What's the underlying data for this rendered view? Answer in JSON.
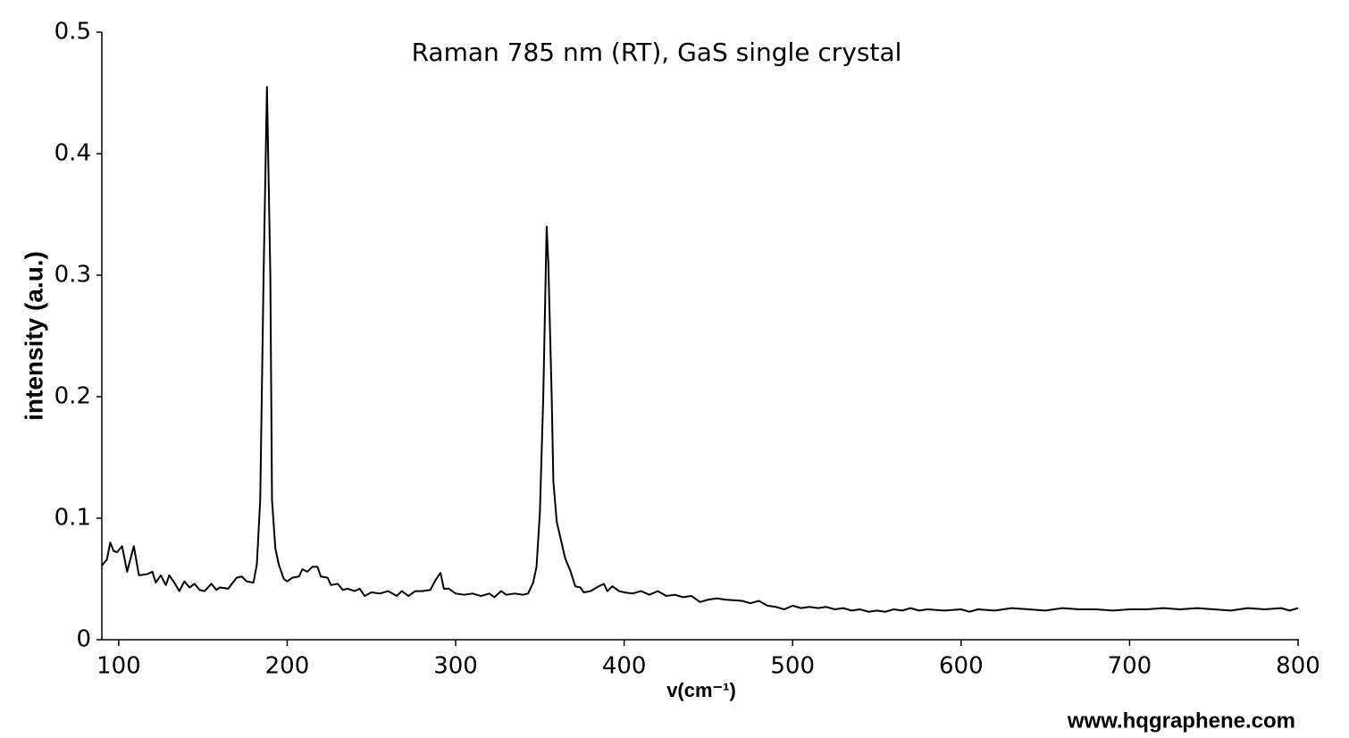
{
  "chart_data": {
    "type": "line",
    "title": "Raman 785 nm (RT), GaS single crystal",
    "x_label": "v(cm⁻¹)",
    "y_label": "intensity (a.u.)",
    "watermark": "www.hqgraphene.com",
    "xlim": [
      90,
      800
    ],
    "ylim": [
      0,
      0.5
    ],
    "xticks": [
      100,
      200,
      300,
      400,
      500,
      600,
      700,
      800
    ],
    "yticks": [
      0,
      0.1,
      0.2,
      0.3,
      0.4,
      0.5
    ],
    "series": [
      {
        "color": "#000000",
        "x": [
          90,
          93,
          95,
          97,
          99,
          102,
          105,
          109,
          112,
          117,
          120,
          122,
          125,
          128,
          130,
          133,
          136,
          139,
          142,
          145,
          148,
          151,
          155,
          158,
          160,
          165,
          170,
          173,
          176,
          180,
          182,
          184,
          186,
          188,
          190,
          191,
          193,
          195,
          198,
          200,
          203,
          207,
          209,
          212,
          215,
          218,
          220,
          224,
          226,
          230,
          233,
          236,
          240,
          243,
          246,
          250,
          255,
          260,
          265,
          268,
          272,
          276,
          280,
          285,
          288,
          291,
          293,
          296,
          300,
          305,
          310,
          315,
          320,
          323,
          327,
          330,
          335,
          340,
          343,
          346,
          348,
          350,
          352,
          354,
          355,
          357,
          358,
          360,
          362,
          365,
          368,
          371,
          374,
          376,
          380,
          385,
          388,
          390,
          393,
          397,
          400,
          405,
          410,
          415,
          420,
          425,
          430,
          435,
          440,
          445,
          450,
          455,
          460,
          470,
          475,
          480,
          485,
          490,
          495,
          500,
          505,
          510,
          515,
          520,
          525,
          530,
          535,
          540,
          545,
          550,
          555,
          560,
          565,
          570,
          575,
          580,
          590,
          600,
          605,
          610,
          620,
          630,
          640,
          650,
          660,
          670,
          680,
          690,
          700,
          710,
          720,
          730,
          740,
          750,
          760,
          770,
          780,
          790,
          795,
          800
        ],
        "values": [
          0.061,
          0.066,
          0.08,
          0.073,
          0.072,
          0.077,
          0.056,
          0.077,
          0.053,
          0.054,
          0.056,
          0.047,
          0.053,
          0.045,
          0.053,
          0.047,
          0.04,
          0.048,
          0.043,
          0.046,
          0.041,
          0.04,
          0.046,
          0.041,
          0.043,
          0.042,
          0.051,
          0.052,
          0.048,
          0.047,
          0.062,
          0.115,
          0.3,
          0.455,
          0.3,
          0.115,
          0.075,
          0.062,
          0.05,
          0.048,
          0.051,
          0.052,
          0.058,
          0.056,
          0.06,
          0.06,
          0.052,
          0.051,
          0.045,
          0.046,
          0.041,
          0.042,
          0.04,
          0.042,
          0.036,
          0.039,
          0.038,
          0.04,
          0.036,
          0.04,
          0.036,
          0.04,
          0.04,
          0.041,
          0.049,
          0.055,
          0.042,
          0.042,
          0.038,
          0.037,
          0.038,
          0.036,
          0.038,
          0.035,
          0.04,
          0.037,
          0.038,
          0.037,
          0.038,
          0.047,
          0.06,
          0.105,
          0.2,
          0.34,
          0.31,
          0.2,
          0.13,
          0.097,
          0.085,
          0.067,
          0.057,
          0.044,
          0.043,
          0.039,
          0.04,
          0.044,
          0.046,
          0.04,
          0.044,
          0.04,
          0.039,
          0.038,
          0.04,
          0.037,
          0.04,
          0.036,
          0.037,
          0.035,
          0.036,
          0.031,
          0.033,
          0.034,
          0.033,
          0.032,
          0.03,
          0.032,
          0.028,
          0.027,
          0.025,
          0.028,
          0.026,
          0.027,
          0.026,
          0.027,
          0.025,
          0.026,
          0.024,
          0.025,
          0.023,
          0.024,
          0.023,
          0.025,
          0.024,
          0.026,
          0.024,
          0.025,
          0.024,
          0.025,
          0.023,
          0.025,
          0.024,
          0.026,
          0.025,
          0.024,
          0.026,
          0.025,
          0.025,
          0.024,
          0.025,
          0.025,
          0.026,
          0.025,
          0.026,
          0.025,
          0.024,
          0.026,
          0.025,
          0.026,
          0.024,
          0.026
        ]
      }
    ]
  }
}
